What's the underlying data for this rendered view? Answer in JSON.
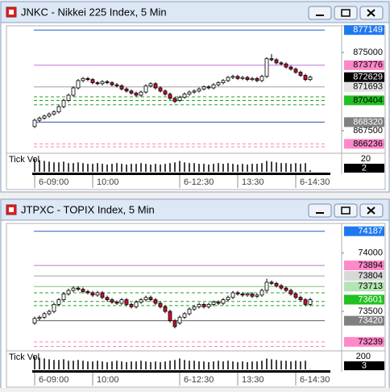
{
  "chart_data": [
    {
      "type": "candlestick",
      "title": "JNKC - Nikkei 225 Index, 5 Min",
      "categories": [
        "6-09:00",
        null,
        null,
        null,
        null,
        null,
        null,
        null,
        null,
        null,
        null,
        null,
        "10:00",
        null,
        null,
        null,
        null,
        null,
        null,
        null,
        null,
        null,
        null,
        null,
        null,
        null,
        null,
        null,
        null,
        null,
        "6-12:30",
        null,
        null,
        null,
        null,
        null,
        null,
        null,
        null,
        null,
        null,
        null,
        "13:30",
        null,
        null,
        null,
        null,
        null,
        null,
        null,
        null,
        null,
        null,
        null,
        "6-14:30",
        null,
        null,
        null
      ],
      "open": [
        867900,
        868500,
        868700,
        868900,
        869100,
        869300,
        869800,
        870400,
        870900,
        871600,
        872300,
        872500,
        872400,
        872100,
        872000,
        872200,
        872100,
        871900,
        871800,
        871500,
        871300,
        871100,
        870900,
        871200,
        871800,
        872000,
        871600,
        871300,
        871000,
        870600,
        870400,
        870700,
        871000,
        871200,
        871300,
        871500,
        871700,
        871600,
        871900,
        872100,
        872300,
        872600,
        872700,
        872500,
        872600,
        872400,
        872500,
        872300,
        872700,
        874400,
        874300,
        874000,
        873900,
        873600,
        873400,
        873100,
        872800,
        872400
      ],
      "high": [
        868650,
        868850,
        869050,
        869250,
        869450,
        869950,
        870550,
        871050,
        871750,
        872450,
        872650,
        872650,
        872550,
        872250,
        872350,
        872350,
        872250,
        872050,
        871950,
        871650,
        871450,
        871250,
        871350,
        871950,
        872150,
        872150,
        871750,
        871450,
        871150,
        870750,
        870850,
        871150,
        871350,
        871450,
        871650,
        871850,
        871850,
        872050,
        872250,
        872450,
        872750,
        872850,
        872850,
        872750,
        872750,
        872650,
        872650,
        872850,
        874550,
        874850,
        874450,
        874150,
        874050,
        873750,
        873550,
        873250,
        872950,
        872779
      ],
      "low": [
        867750,
        868350,
        868550,
        868750,
        868950,
        869150,
        869650,
        870250,
        870750,
        871450,
        872150,
        872250,
        871950,
        871850,
        871850,
        871950,
        871750,
        871650,
        871350,
        871150,
        870950,
        870750,
        870750,
        871050,
        871650,
        871450,
        871150,
        870850,
        870450,
        870150,
        870250,
        870550,
        870850,
        871050,
        871150,
        871350,
        871450,
        871450,
        871750,
        871950,
        872150,
        872450,
        872350,
        872350,
        872250,
        872250,
        872150,
        872150,
        872550,
        874150,
        873850,
        873750,
        873450,
        873250,
        872950,
        872650,
        872250,
        872250
      ],
      "close": [
        868500,
        868700,
        868900,
        869100,
        869300,
        869800,
        870400,
        870900,
        871600,
        872300,
        872500,
        872400,
        872100,
        872000,
        872200,
        872100,
        871900,
        871800,
        871500,
        871300,
        871100,
        870900,
        871200,
        871800,
        872000,
        871600,
        871300,
        871000,
        870600,
        870300,
        870700,
        871000,
        871200,
        871300,
        871500,
        871700,
        871600,
        871900,
        872100,
        872300,
        872600,
        872700,
        872500,
        872600,
        872400,
        872500,
        872300,
        872700,
        874400,
        874300,
        874000,
        873900,
        873600,
        873400,
        873100,
        872800,
        872400,
        872629
      ],
      "volume": [
        18,
        16,
        15,
        14,
        13,
        13,
        14,
        12,
        12,
        13,
        12,
        11,
        11,
        12,
        11,
        10,
        11,
        12,
        11,
        10,
        11,
        11,
        12,
        11,
        10,
        11,
        10,
        11,
        12,
        13,
        15,
        13,
        12,
        12,
        11,
        11,
        10,
        11,
        12,
        11,
        12,
        11,
        10,
        11,
        10,
        11,
        11,
        12,
        15,
        14,
        13,
        12,
        12,
        11,
        12,
        11,
        12,
        2
      ],
      "ylim": [
        865335,
        877552
      ],
      "yticks": [
        875000,
        867500
      ],
      "volume_label": "Tick Vol",
      "vol_ylim": [
        0,
        20
      ],
      "vol_yticks": [
        20
      ],
      "up_color": "#ffffff",
      "down_color": "#c8102e",
      "last_tag_color": "#000000",
      "levels": [
        {
          "value": 877149,
          "color": "#1f5fd0",
          "tag": "#1f78f0",
          "tag_text": "#ffffff"
        },
        {
          "value": 873776,
          "color": "#c070d8",
          "tag": "#ff88c8",
          "tag_text": "#000000"
        },
        {
          "value": 871693,
          "color": "#a0a0a0",
          "tag": "#e4e4e4",
          "tag_text": "#000000"
        },
        {
          "value": 870750,
          "color": "#20a020",
          "dash": true
        },
        {
          "value": 870404,
          "color": "#20a020",
          "dash": true,
          "tag": "#22c022",
          "tag_text": "#000000"
        },
        {
          "value": 869980,
          "color": "#20a020",
          "dash": true
        },
        {
          "value": 868320,
          "color": "#3050a0",
          "tag": "#808080",
          "tag_text": "#ffffff"
        },
        {
          "value": 866236,
          "color": "#ff80c0",
          "dash": true,
          "tag": "#ff88c8",
          "tag_text": "#000000"
        },
        {
          "value": 865950,
          "color": "#ff80c0",
          "dash": true
        }
      ]
    },
    {
      "type": "candlestick",
      "title": "JTPXC - TOPIX Index, 5 Min",
      "categories": [
        "6-09:00",
        null,
        null,
        null,
        null,
        null,
        null,
        null,
        null,
        null,
        null,
        null,
        "10:00",
        null,
        null,
        null,
        null,
        null,
        null,
        null,
        null,
        null,
        null,
        null,
        null,
        null,
        null,
        null,
        null,
        null,
        "6-12:30",
        null,
        null,
        null,
        null,
        null,
        null,
        null,
        null,
        null,
        null,
        null,
        "13:30",
        null,
        null,
        null,
        null,
        null,
        null,
        null,
        null,
        null,
        null,
        null,
        "6-14:30",
        null,
        null,
        null
      ],
      "open": [
        73400,
        73440,
        73450,
        73480,
        73500,
        73560,
        73600,
        73650,
        73680,
        73700,
        73690,
        73670,
        73660,
        73640,
        73660,
        73620,
        73600,
        73580,
        73570,
        73600,
        73560,
        73540,
        73580,
        73600,
        73620,
        73600,
        73570,
        73540,
        73500,
        73420,
        73400,
        73450,
        73480,
        73520,
        73540,
        73560,
        73540,
        73560,
        73580,
        73570,
        73600,
        73620,
        73660,
        73650,
        73640,
        73650,
        73630,
        73640,
        73680,
        73750,
        73740,
        73720,
        73700,
        73680,
        73650,
        73620,
        73600,
        73560
      ],
      "high": [
        73455,
        73465,
        73495,
        73515,
        73575,
        73615,
        73665,
        73695,
        73715,
        73715,
        73705,
        73685,
        73675,
        73675,
        73675,
        73635,
        73615,
        73595,
        73615,
        73615,
        73575,
        73595,
        73615,
        73635,
        73635,
        73615,
        73585,
        73555,
        73515,
        73435,
        73465,
        73495,
        73535,
        73555,
        73575,
        73575,
        73575,
        73595,
        73595,
        73615,
        73635,
        73675,
        73675,
        73665,
        73665,
        73665,
        73655,
        73695,
        73780,
        73765,
        73755,
        73735,
        73715,
        73695,
        73665,
        73635,
        73615,
        73616
      ],
      "low": [
        73385,
        73425,
        73435,
        73465,
        73485,
        73545,
        73585,
        73635,
        73665,
        73675,
        73655,
        73645,
        73625,
        73625,
        73605,
        73585,
        73565,
        73555,
        73555,
        73545,
        73525,
        73525,
        73565,
        73585,
        73585,
        73555,
        73525,
        73485,
        73405,
        73355,
        73385,
        73435,
        73465,
        73505,
        73525,
        73525,
        73525,
        73545,
        73555,
        73555,
        73585,
        73605,
        73635,
        73625,
        73625,
        73615,
        73615,
        73625,
        73665,
        73725,
        73705,
        73685,
        73665,
        73635,
        73605,
        73585,
        73545,
        73545
      ],
      "close": [
        73440,
        73450,
        73480,
        73500,
        73560,
        73600,
        73650,
        73680,
        73700,
        73690,
        73670,
        73660,
        73640,
        73660,
        73620,
        73600,
        73580,
        73570,
        73600,
        73560,
        73540,
        73580,
        73600,
        73620,
        73600,
        73570,
        73540,
        73500,
        73420,
        73370,
        73450,
        73480,
        73520,
        73540,
        73560,
        73540,
        73560,
        73580,
        73570,
        73600,
        73620,
        73660,
        73650,
        73640,
        73650,
        73630,
        73640,
        73680,
        73750,
        73740,
        73720,
        73700,
        73680,
        73650,
        73620,
        73600,
        73560,
        73601
      ],
      "volume": [
        180,
        160,
        150,
        140,
        130,
        130,
        140,
        120,
        120,
        130,
        120,
        110,
        110,
        120,
        110,
        100,
        110,
        120,
        110,
        100,
        110,
        110,
        120,
        110,
        100,
        110,
        100,
        110,
        120,
        130,
        150,
        130,
        120,
        120,
        110,
        110,
        100,
        110,
        120,
        110,
        120,
        110,
        100,
        110,
        100,
        110,
        110,
        120,
        150,
        140,
        130,
        120,
        120,
        110,
        120,
        110,
        120,
        3
      ],
      "ylim": [
        73162,
        74254
      ],
      "yticks": [
        74000,
        73500
      ],
      "volume_label": "Tick Vol",
      "vol_ylim": [
        0,
        200
      ],
      "vol_yticks": [
        200
      ],
      "up_color": "#ffffff",
      "down_color": "#c8102e",
      "last_tag_color": "#22c022",
      "levels": [
        {
          "value": 74187,
          "color": "#1f5fd0",
          "tag": "#1f78f0",
          "tag_text": "#ffffff"
        },
        {
          "value": 73894,
          "color": "#c070d8",
          "tag": "#ff88c8",
          "tag_text": "#000000"
        },
        {
          "value": 73804,
          "color": "#a0a0a0",
          "tag": "#d8d8d8",
          "tag_text": "#000000"
        },
        {
          "value": 73713,
          "color": "#80c080",
          "tag": "#b4e4b4",
          "tag_text": "#000000"
        },
        {
          "value": 73660,
          "color": "#20a020",
          "dash": true
        },
        {
          "value": 73585,
          "color": "#20a020",
          "dash": true
        },
        {
          "value": 73550,
          "color": "#20a020",
          "dash": true
        },
        {
          "value": 73420,
          "color": "#606060",
          "tag": "#808080",
          "tag_text": "#ffffff"
        },
        {
          "value": 73239,
          "color": "#ff80c0",
          "dash": true,
          "tag": "#ff88c8",
          "tag_text": "#000000"
        },
        {
          "value": 73200,
          "color": "#ff80c0",
          "dash": true
        }
      ]
    }
  ]
}
